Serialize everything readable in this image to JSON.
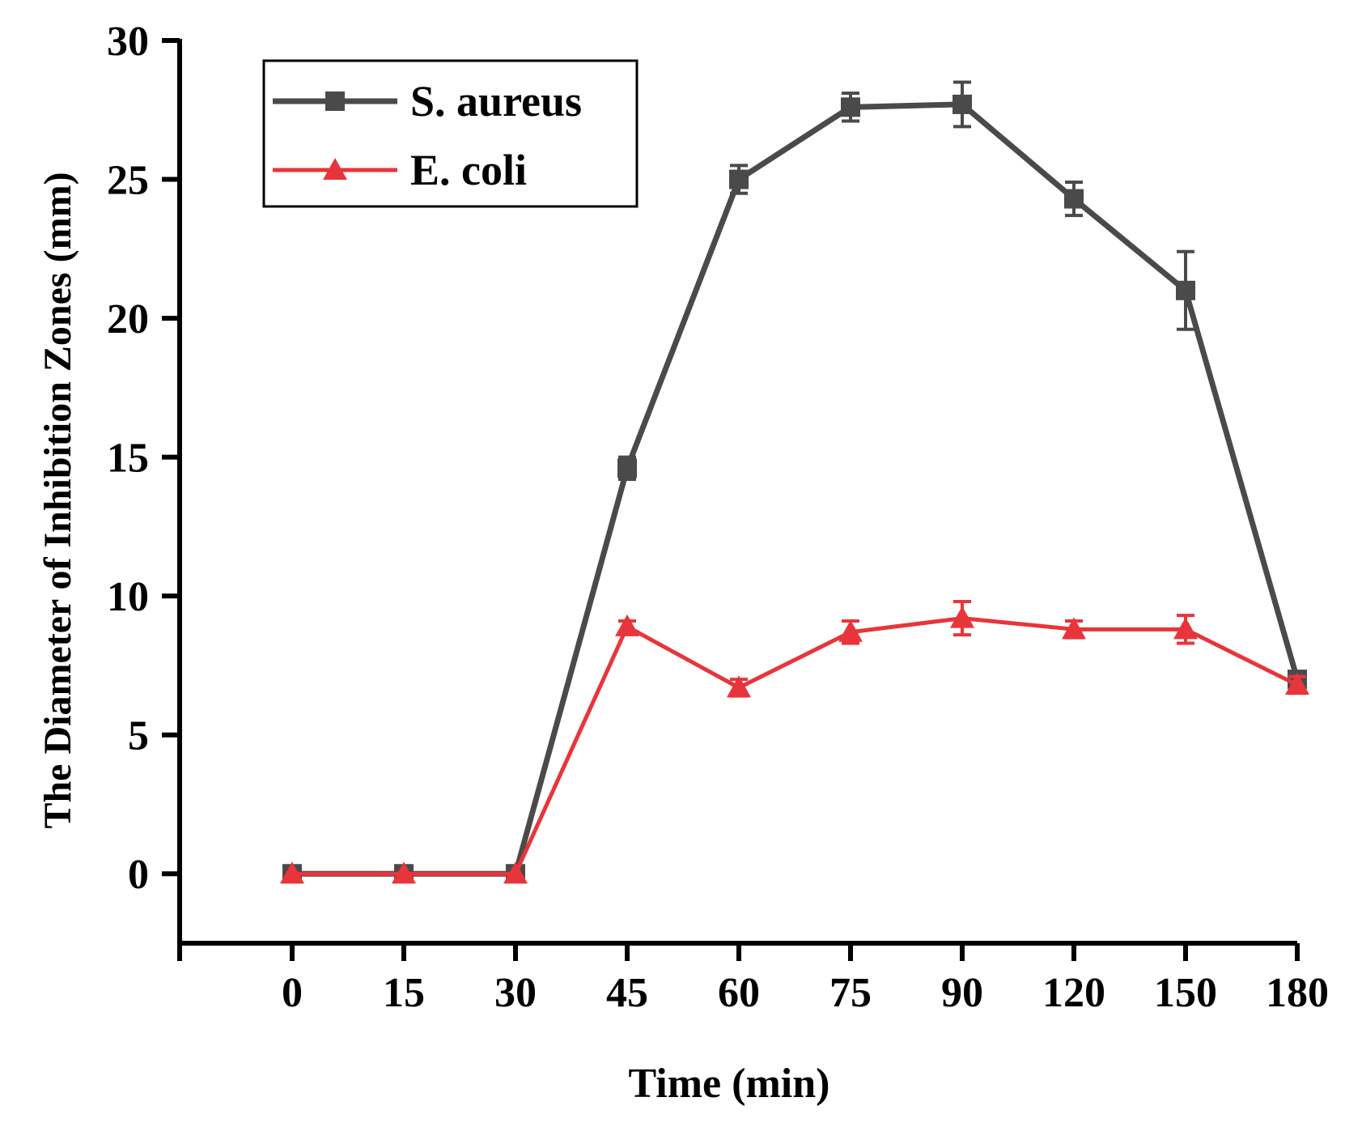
{
  "chart_data": {
    "type": "line",
    "title": "",
    "xlabel": "Time (min)",
    "ylabel": "The Diameter of Inhibition Zones (mm)",
    "categories": [
      "0",
      "15",
      "30",
      "45",
      "60",
      "75",
      "90",
      "120",
      "150",
      "180"
    ],
    "ylim": [
      -2.5,
      30
    ],
    "yticks": [
      0,
      5,
      10,
      15,
      20,
      25,
      30
    ],
    "ytick_labels": [
      "0",
      "5",
      "10",
      "15",
      "20",
      "25",
      "30"
    ],
    "grid": false,
    "legend_position": "top-left",
    "series": [
      {
        "name": "S. aureus",
        "color": "#4a4a4a",
        "marker": "square",
        "values": [
          0,
          0,
          0,
          14.6,
          25.0,
          27.6,
          27.7,
          24.3,
          21.0,
          7.0
        ],
        "errors": [
          0,
          0,
          0,
          0.4,
          0.5,
          0.5,
          0.8,
          0.6,
          1.4,
          0.2
        ]
      },
      {
        "name": "E. coli",
        "color": "#e8353b",
        "marker": "triangle",
        "values": [
          0,
          0,
          0,
          8.9,
          6.7,
          8.7,
          9.2,
          8.8,
          8.8,
          6.8
        ],
        "errors": [
          0,
          0,
          0,
          0.2,
          0.3,
          0.4,
          0.6,
          0.3,
          0.5,
          0.3
        ]
      }
    ]
  }
}
